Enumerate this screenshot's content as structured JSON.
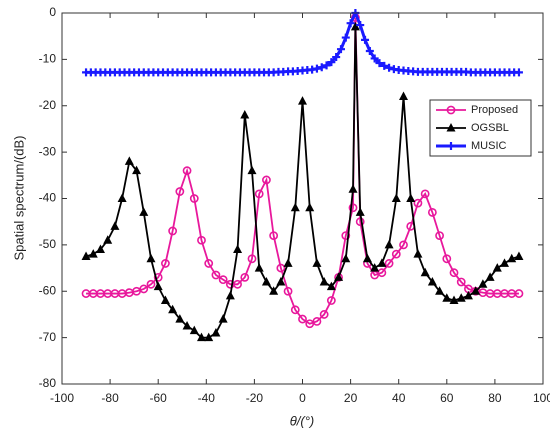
{
  "chart_data": {
    "type": "line",
    "xlabel": "θ/(°)",
    "ylabel": "Spatial spectrum/(dB)",
    "xlim": [
      -100,
      100
    ],
    "xticks": [
      -100,
      -80,
      -60,
      -40,
      -20,
      0,
      20,
      40,
      60,
      80,
      100
    ],
    "ylim": [
      -80,
      0
    ],
    "yticks": [
      -80,
      -70,
      -60,
      -50,
      -40,
      -30,
      -20,
      -10,
      0
    ],
    "grid": false,
    "legend": "upper right",
    "x": [
      -90,
      -87,
      -84,
      -81,
      -78,
      -75,
      -72,
      -69,
      -66,
      -63,
      -60,
      -57,
      -54,
      -51,
      -48,
      -45,
      -42,
      -39,
      -36,
      -33,
      -30,
      -27,
      -24,
      -21,
      -18,
      -15,
      -12,
      -9,
      -6,
      -3,
      0,
      3,
      6,
      9,
      12,
      15,
      18,
      21,
      22,
      24,
      27,
      30,
      33,
      36,
      39,
      42,
      45,
      48,
      51,
      54,
      57,
      60,
      63,
      66,
      69,
      72,
      75,
      78,
      81,
      84,
      87,
      90
    ],
    "series": [
      {
        "name": "Proposed",
        "color": "#e8189c",
        "marker": "circle",
        "values": [
          -60.5,
          -60.5,
          -60.5,
          -60.5,
          -60.5,
          -60.5,
          -60.3,
          -60,
          -59.5,
          -58.5,
          -57,
          -54,
          -47,
          -38.5,
          -34,
          -40,
          -49,
          -54,
          -56.5,
          -57.5,
          -58.5,
          -58.5,
          -57,
          -53,
          -39,
          -36,
          -48,
          -55,
          -60,
          -64,
          -66,
          -67,
          -66.5,
          -65,
          -62,
          -57,
          -48,
          -42,
          -1,
          -45,
          -54,
          -56.5,
          -56,
          -54,
          -52,
          -50,
          -46,
          -41,
          -39,
          -43,
          -48,
          -53,
          -56,
          -58,
          -59.5,
          -60,
          -60.3,
          -60.5,
          -60.5,
          -60.5,
          -60.5,
          -60.5
        ]
      },
      {
        "name": "OGSBL",
        "color": "#000000",
        "marker": "triangle",
        "values": [
          -52.5,
          -52,
          -51,
          -49,
          -46,
          -40,
          -32,
          -34,
          -43,
          -53,
          -59,
          -62,
          -64,
          -66,
          -67.5,
          -68.5,
          -70,
          -70,
          -69,
          -66,
          -61,
          -51,
          -22,
          -34,
          -55,
          -58,
          -60,
          -58,
          -54,
          -42,
          -19,
          -42,
          -54,
          -58,
          -59,
          -57,
          -53,
          -38,
          -3,
          -43,
          -53,
          -55,
          -54,
          -50,
          -40,
          -18,
          -40,
          -52,
          -56,
          -58,
          -60,
          -61.5,
          -62,
          -61.5,
          -61,
          -60,
          -58.5,
          -57,
          -55,
          -54,
          -53,
          -52.5
        ]
      },
      {
        "name": "MUSIC",
        "color": "#1a1aff",
        "marker": "plus",
        "x": [
          -90,
          -88,
          -86,
          -84,
          -82,
          -80,
          -78,
          -76,
          -74,
          -72,
          -70,
          -68,
          -66,
          -64,
          -62,
          -60,
          -58,
          -56,
          -54,
          -52,
          -50,
          -48,
          -46,
          -44,
          -42,
          -40,
          -38,
          -36,
          -34,
          -32,
          -30,
          -28,
          -26,
          -24,
          -22,
          -20,
          -18,
          -16,
          -14,
          -12,
          -10,
          -8,
          -6,
          -4,
          -2,
          0,
          2,
          4,
          6,
          8,
          10,
          12,
          14,
          16,
          18,
          20,
          22,
          24,
          26,
          28,
          30,
          32,
          34,
          36,
          38,
          40,
          42,
          44,
          46,
          48,
          50,
          52,
          54,
          56,
          58,
          60,
          62,
          64,
          66,
          68,
          70,
          72,
          74,
          76,
          78,
          80,
          82,
          84,
          86,
          88,
          90
        ],
        "values": [
          -12.8,
          -12.8,
          -12.8,
          -12.8,
          -12.8,
          -12.8,
          -12.8,
          -12.8,
          -12.8,
          -12.8,
          -12.8,
          -12.8,
          -12.8,
          -12.8,
          -12.8,
          -12.8,
          -12.8,
          -12.8,
          -12.8,
          -12.8,
          -12.8,
          -12.8,
          -12.8,
          -12.8,
          -12.8,
          -12.8,
          -12.8,
          -12.8,
          -12.8,
          -12.8,
          -12.8,
          -12.8,
          -12.8,
          -12.8,
          -12.8,
          -12.8,
          -12.8,
          -12.8,
          -12.8,
          -12.8,
          -12.7,
          -12.7,
          -12.6,
          -12.6,
          -12.5,
          -12.4,
          -12.3,
          -12.2,
          -12.0,
          -11.7,
          -11.3,
          -10.6,
          -9.5,
          -7.8,
          -5.3,
          -2.2,
          0,
          -2.6,
          -5.8,
          -8.2,
          -9.8,
          -10.8,
          -11.4,
          -11.8,
          -12.1,
          -12.3,
          -12.4,
          -12.5,
          -12.6,
          -12.7,
          -12.7,
          -12.7,
          -12.7,
          -12.7,
          -12.7,
          -12.7,
          -12.7,
          -12.7,
          -12.7,
          -12.7,
          -12.8,
          -12.8,
          -12.8,
          -12.8,
          -12.8,
          -12.8,
          -12.8,
          -12.8,
          -12.8,
          -12.8,
          -12.8
        ]
      }
    ]
  }
}
